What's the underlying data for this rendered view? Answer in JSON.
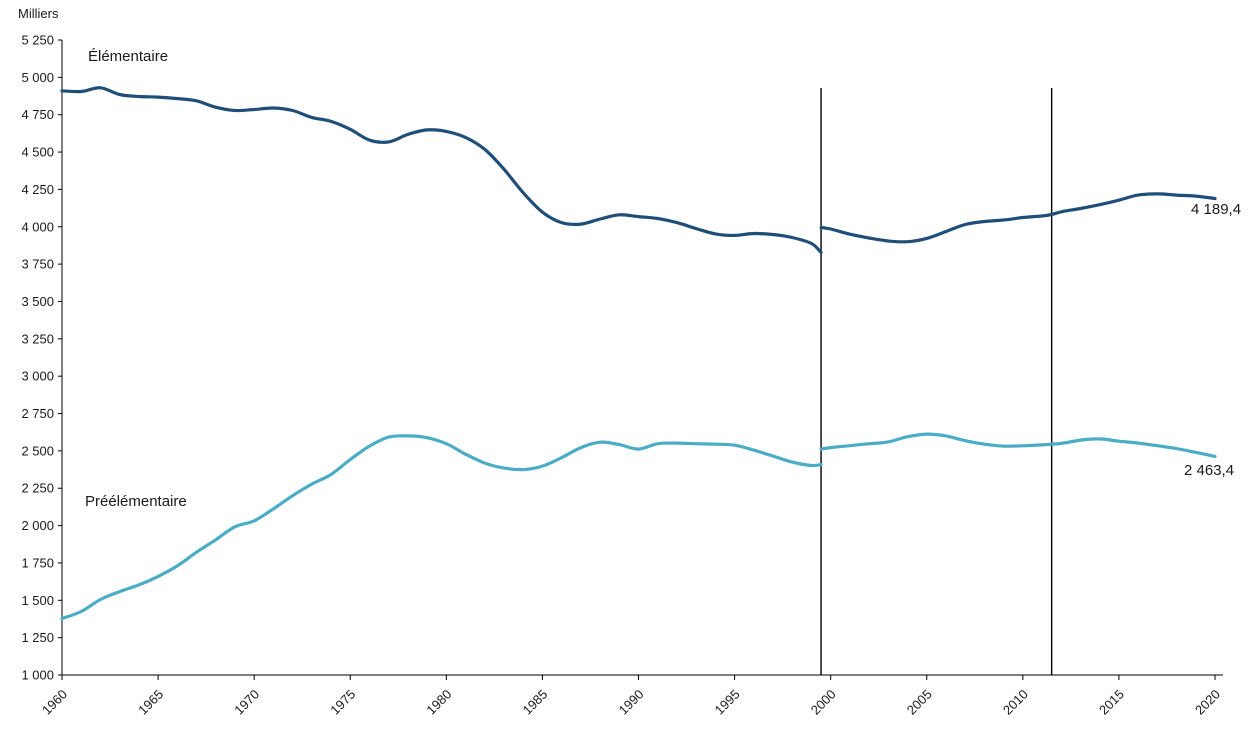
{
  "labels": {
    "ylabel": "Milliers",
    "series1": "Élémentaire",
    "series2": "Préélémentaire",
    "end1": "4 189,4",
    "end2": "2 463,4"
  },
  "chart_data": {
    "type": "line",
    "title": "",
    "ylabel": "Milliers",
    "xlim": [
      1960,
      2020
    ],
    "ylim": [
      1000,
      5250
    ],
    "ytick_step": 250,
    "xtick_step": 5,
    "grid": false,
    "legend_position": "inline-annotations",
    "break_lines": [
      1999.5,
      2011.5
    ],
    "series": [
      {
        "id": "elementaire",
        "name": "Élémentaire",
        "color": "#1F4E79",
        "end_label": "4 189,4",
        "segments": [
          [
            [
              1960,
              4910
            ],
            [
              1961,
              4905
            ],
            [
              1962,
              4930
            ],
            [
              1963,
              4885
            ],
            [
              1964,
              4872
            ],
            [
              1965,
              4868
            ],
            [
              1966,
              4858
            ],
            [
              1967,
              4843
            ],
            [
              1968,
              4800
            ],
            [
              1969,
              4778
            ],
            [
              1970,
              4785
            ],
            [
              1971,
              4795
            ],
            [
              1972,
              4778
            ],
            [
              1973,
              4732
            ],
            [
              1974,
              4705
            ],
            [
              1975,
              4652
            ],
            [
              1976,
              4580
            ],
            [
              1977,
              4568
            ],
            [
              1978,
              4618
            ],
            [
              1979,
              4648
            ],
            [
              1980,
              4638
            ],
            [
              1981,
              4598
            ],
            [
              1982,
              4518
            ],
            [
              1983,
              4385
            ],
            [
              1984,
              4228
            ],
            [
              1985,
              4098
            ],
            [
              1986,
              4028
            ],
            [
              1987,
              4018
            ],
            [
              1988,
              4052
            ],
            [
              1989,
              4080
            ],
            [
              1990,
              4068
            ],
            [
              1991,
              4055
            ],
            [
              1992,
              4028
            ],
            [
              1993,
              3988
            ],
            [
              1994,
              3952
            ],
            [
              1995,
              3942
            ],
            [
              1996,
              3955
            ],
            [
              1997,
              3948
            ],
            [
              1998,
              3928
            ],
            [
              1999,
              3888
            ],
            [
              1999.5,
              3828
            ]
          ],
          [
            [
              1999.5,
              3995
            ],
            [
              2000,
              3985
            ],
            [
              2001,
              3950
            ],
            [
              2002,
              3925
            ],
            [
              2003,
              3905
            ],
            [
              2004,
              3900
            ],
            [
              2005,
              3922
            ],
            [
              2006,
              3968
            ],
            [
              2007,
              4015
            ],
            [
              2008,
              4035
            ],
            [
              2009,
              4045
            ],
            [
              2010,
              4062
            ],
            [
              2011,
              4072
            ],
            [
              2011.5,
              4082
            ],
            [
              2012,
              4100
            ],
            [
              2013,
              4122
            ],
            [
              2014,
              4148
            ],
            [
              2015,
              4178
            ],
            [
              2016,
              4212
            ],
            [
              2017,
              4220
            ],
            [
              2018,
              4212
            ],
            [
              2019,
              4205
            ],
            [
              2020,
              4189.4
            ]
          ]
        ]
      },
      {
        "id": "preelementaire",
        "name": "Préélémentaire",
        "color": "#4BACC6",
        "end_label": "2 463,4",
        "segments": [
          [
            [
              1960,
              1378
            ],
            [
              1961,
              1425
            ],
            [
              1962,
              1505
            ],
            [
              1963,
              1558
            ],
            [
              1964,
              1603
            ],
            [
              1965,
              1660
            ],
            [
              1966,
              1730
            ],
            [
              1967,
              1822
            ],
            [
              1968,
              1905
            ],
            [
              1969,
              1992
            ],
            [
              1970,
              2032
            ],
            [
              1971,
              2112
            ],
            [
              1972,
              2200
            ],
            [
              1973,
              2278
            ],
            [
              1974,
              2342
            ],
            [
              1975,
              2442
            ],
            [
              1976,
              2532
            ],
            [
              1977,
              2592
            ],
            [
              1978,
              2600
            ],
            [
              1979,
              2588
            ],
            [
              1980,
              2548
            ],
            [
              1981,
              2478
            ],
            [
              1982,
              2418
            ],
            [
              1983,
              2385
            ],
            [
              1984,
              2375
            ],
            [
              1985,
              2398
            ],
            [
              1986,
              2455
            ],
            [
              1987,
              2522
            ],
            [
              1988,
              2558
            ],
            [
              1989,
              2542
            ],
            [
              1990,
              2512
            ],
            [
              1991,
              2548
            ],
            [
              1992,
              2552
            ],
            [
              1993,
              2548
            ],
            [
              1994,
              2545
            ],
            [
              1995,
              2538
            ],
            [
              1996,
              2505
            ],
            [
              1997,
              2465
            ],
            [
              1998,
              2425
            ],
            [
              1999,
              2402
            ],
            [
              1999.5,
              2408
            ]
          ],
          [
            [
              1999.5,
              2512
            ],
            [
              2000,
              2522
            ],
            [
              2001,
              2535
            ],
            [
              2002,
              2548
            ],
            [
              2003,
              2560
            ],
            [
              2004,
              2595
            ],
            [
              2005,
              2612
            ],
            [
              2006,
              2600
            ],
            [
              2007,
              2568
            ],
            [
              2008,
              2545
            ],
            [
              2009,
              2532
            ],
            [
              2010,
              2534
            ],
            [
              2011,
              2540
            ],
            [
              2012,
              2550
            ],
            [
              2013,
              2572
            ],
            [
              2014,
              2580
            ],
            [
              2015,
              2565
            ],
            [
              2016,
              2552
            ],
            [
              2017,
              2535
            ],
            [
              2018,
              2515
            ],
            [
              2019,
              2490
            ],
            [
              2020,
              2463.4
            ]
          ]
        ]
      }
    ]
  }
}
